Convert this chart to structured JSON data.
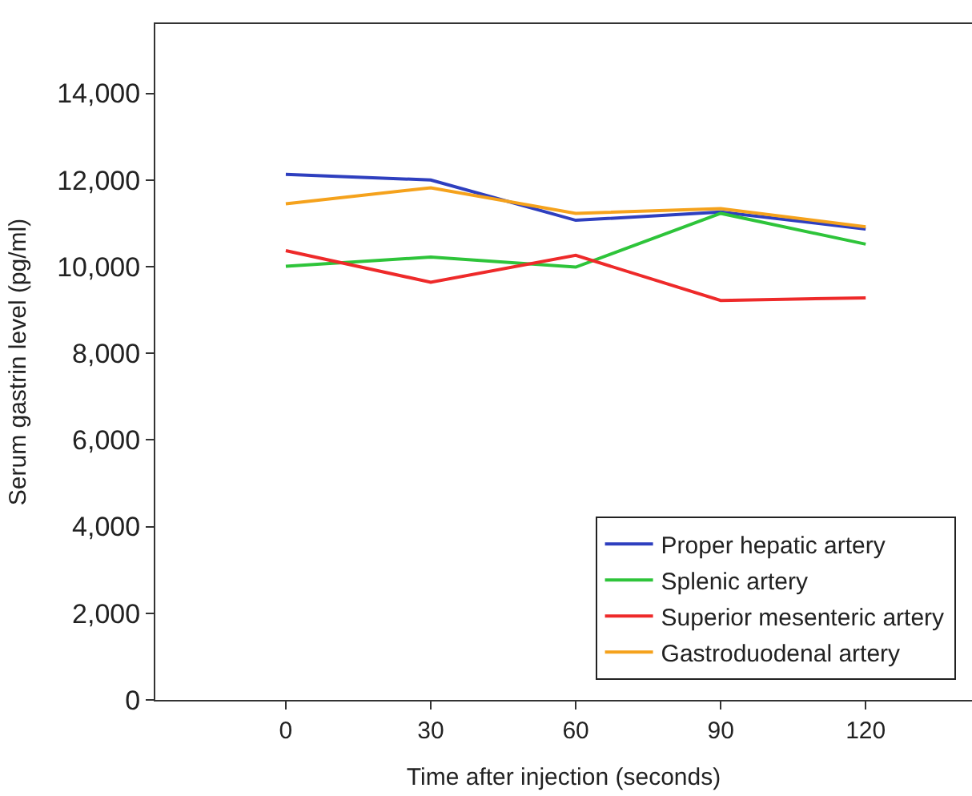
{
  "chart_data": {
    "type": "line",
    "xlabel": "Time after injection (seconds)",
    "ylabel": "Serum gastrin level (pg/ml)",
    "x": [
      0,
      30,
      60,
      90,
      120
    ],
    "series": [
      {
        "name": "Proper hepatic artery",
        "color": "#2e3fbf",
        "values": [
          12130,
          12000,
          11070,
          11260,
          10870
        ]
      },
      {
        "name": "Splenic artery",
        "color": "#2ec43a",
        "values": [
          10010,
          10220,
          9990,
          11230,
          10520
        ]
      },
      {
        "name": "Superior mesenteric artery",
        "color": "#ee2a2a",
        "values": [
          10370,
          9640,
          10260,
          9220,
          9280
        ]
      },
      {
        "name": "Gastroduodenal artery",
        "color": "#f5a21c",
        "values": [
          11450,
          11820,
          11230,
          11340,
          10920
        ]
      }
    ],
    "xlim": [
      -27,
      142
    ],
    "xticks": [
      0,
      30,
      60,
      90,
      120
    ],
    "ylim": [
      0,
      15600
    ],
    "yticks": [
      {
        "value": 0,
        "label": "0"
      },
      {
        "value": 2000,
        "label": "2,000"
      },
      {
        "value": 4000,
        "label": "4,000"
      },
      {
        "value": 6000,
        "label": "6,000"
      },
      {
        "value": 8000,
        "label": "8,000"
      },
      {
        "value": 10000,
        "label": "10,000"
      },
      {
        "value": 12000,
        "label": "12,000"
      },
      {
        "value": 14000,
        "label": "14,000"
      }
    ],
    "legend": "bottom right",
    "marker": "none",
    "line_style": "solid"
  }
}
